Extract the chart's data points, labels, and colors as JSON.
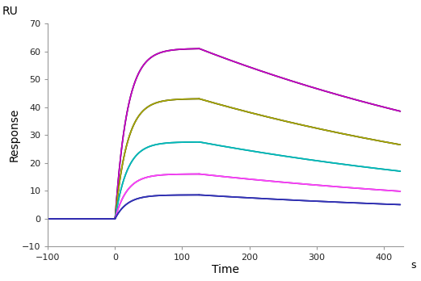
{
  "title": "",
  "xlabel": "Time",
  "ylabel": "Response",
  "xlabel_unit": "s",
  "ylabel_unit": "RU",
  "xlim": [
    -100,
    430
  ],
  "ylim": [
    -10,
    70
  ],
  "xticks": [
    -100,
    0,
    100,
    200,
    300,
    400
  ],
  "yticks": [
    -10,
    0,
    10,
    20,
    30,
    40,
    50,
    60,
    70
  ],
  "curves": [
    {
      "colors": [
        "#000000",
        "#cc00cc"
      ],
      "peak": 61,
      "dissociation_end_val": 38.5,
      "ka": 0.055,
      "kd_linear_slope": -0.077
    },
    {
      "colors": [
        "#000000",
        "#aaaa00"
      ],
      "peak": 43,
      "dissociation_end_val": 26.5,
      "ka": 0.055,
      "kd_linear_slope": -0.055
    },
    {
      "colors": [
        "#007777",
        "#00bbbb"
      ],
      "peak": 27.5,
      "dissociation_end_val": 17.0,
      "ka": 0.055,
      "kd_linear_slope": -0.035
    },
    {
      "colors": [
        "#880088",
        "#ff44ff"
      ],
      "peak": 16,
      "dissociation_end_val": 9.8,
      "ka": 0.055,
      "kd_linear_slope": -0.02
    },
    {
      "colors": [
        "#000066",
        "#3333bb"
      ],
      "peak": 8.5,
      "dissociation_end_val": 5.0,
      "ka": 0.055,
      "kd_linear_slope": -0.012
    }
  ],
  "assoc_start": 0,
  "assoc_end": 125,
  "dissoc_end": 425,
  "baseline_start": -60,
  "background_color": "#ffffff",
  "linewidth": 1.2
}
